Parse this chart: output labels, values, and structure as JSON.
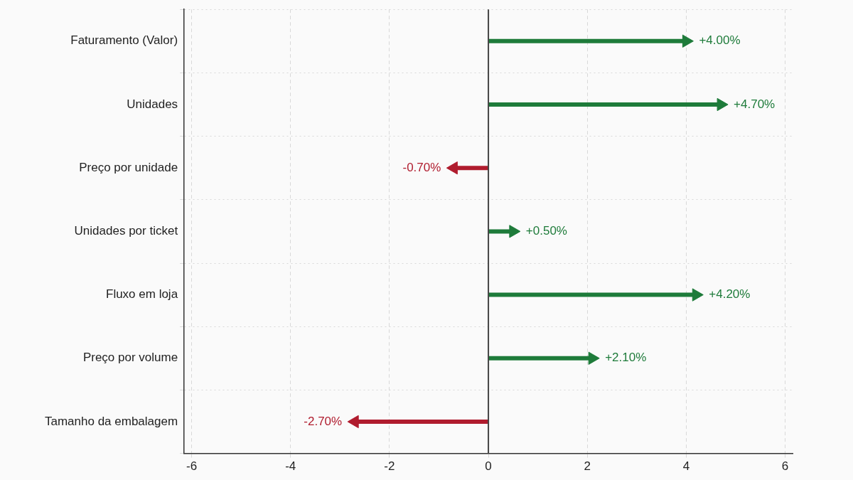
{
  "chart_data": {
    "type": "lollipop",
    "orientation": "horizontal",
    "marker": "triangle",
    "categories": [
      "Faturamento (Valor)",
      "Unidades",
      "Preço por unidade",
      "Unidades por ticket",
      "Fluxo em loja",
      "Preço por volume",
      "Tamanho da embalagem"
    ],
    "values": [
      4.0,
      4.7,
      -0.7,
      0.5,
      4.2,
      2.1,
      -2.7
    ],
    "colors": [
      "#1e7b3a",
      "#1e7b3a",
      "#b01c2e",
      "#1e7b3a",
      "#1e7b3a",
      "#1e7b3a",
      "#b01c2e"
    ],
    "value_labels": [
      "+4.00%",
      "+4.70%",
      "-0.70%",
      "+0.50%",
      "+4.20%",
      "+2.10%",
      "-2.70%"
    ],
    "xlim": [
      -6.15,
      6.15
    ],
    "xticks": [
      -6,
      -4,
      -2,
      0,
      2,
      4,
      6
    ],
    "ref_lines": [
      {
        "axis": "x",
        "value": 0,
        "color": "#444444"
      }
    ],
    "grid": true
  }
}
